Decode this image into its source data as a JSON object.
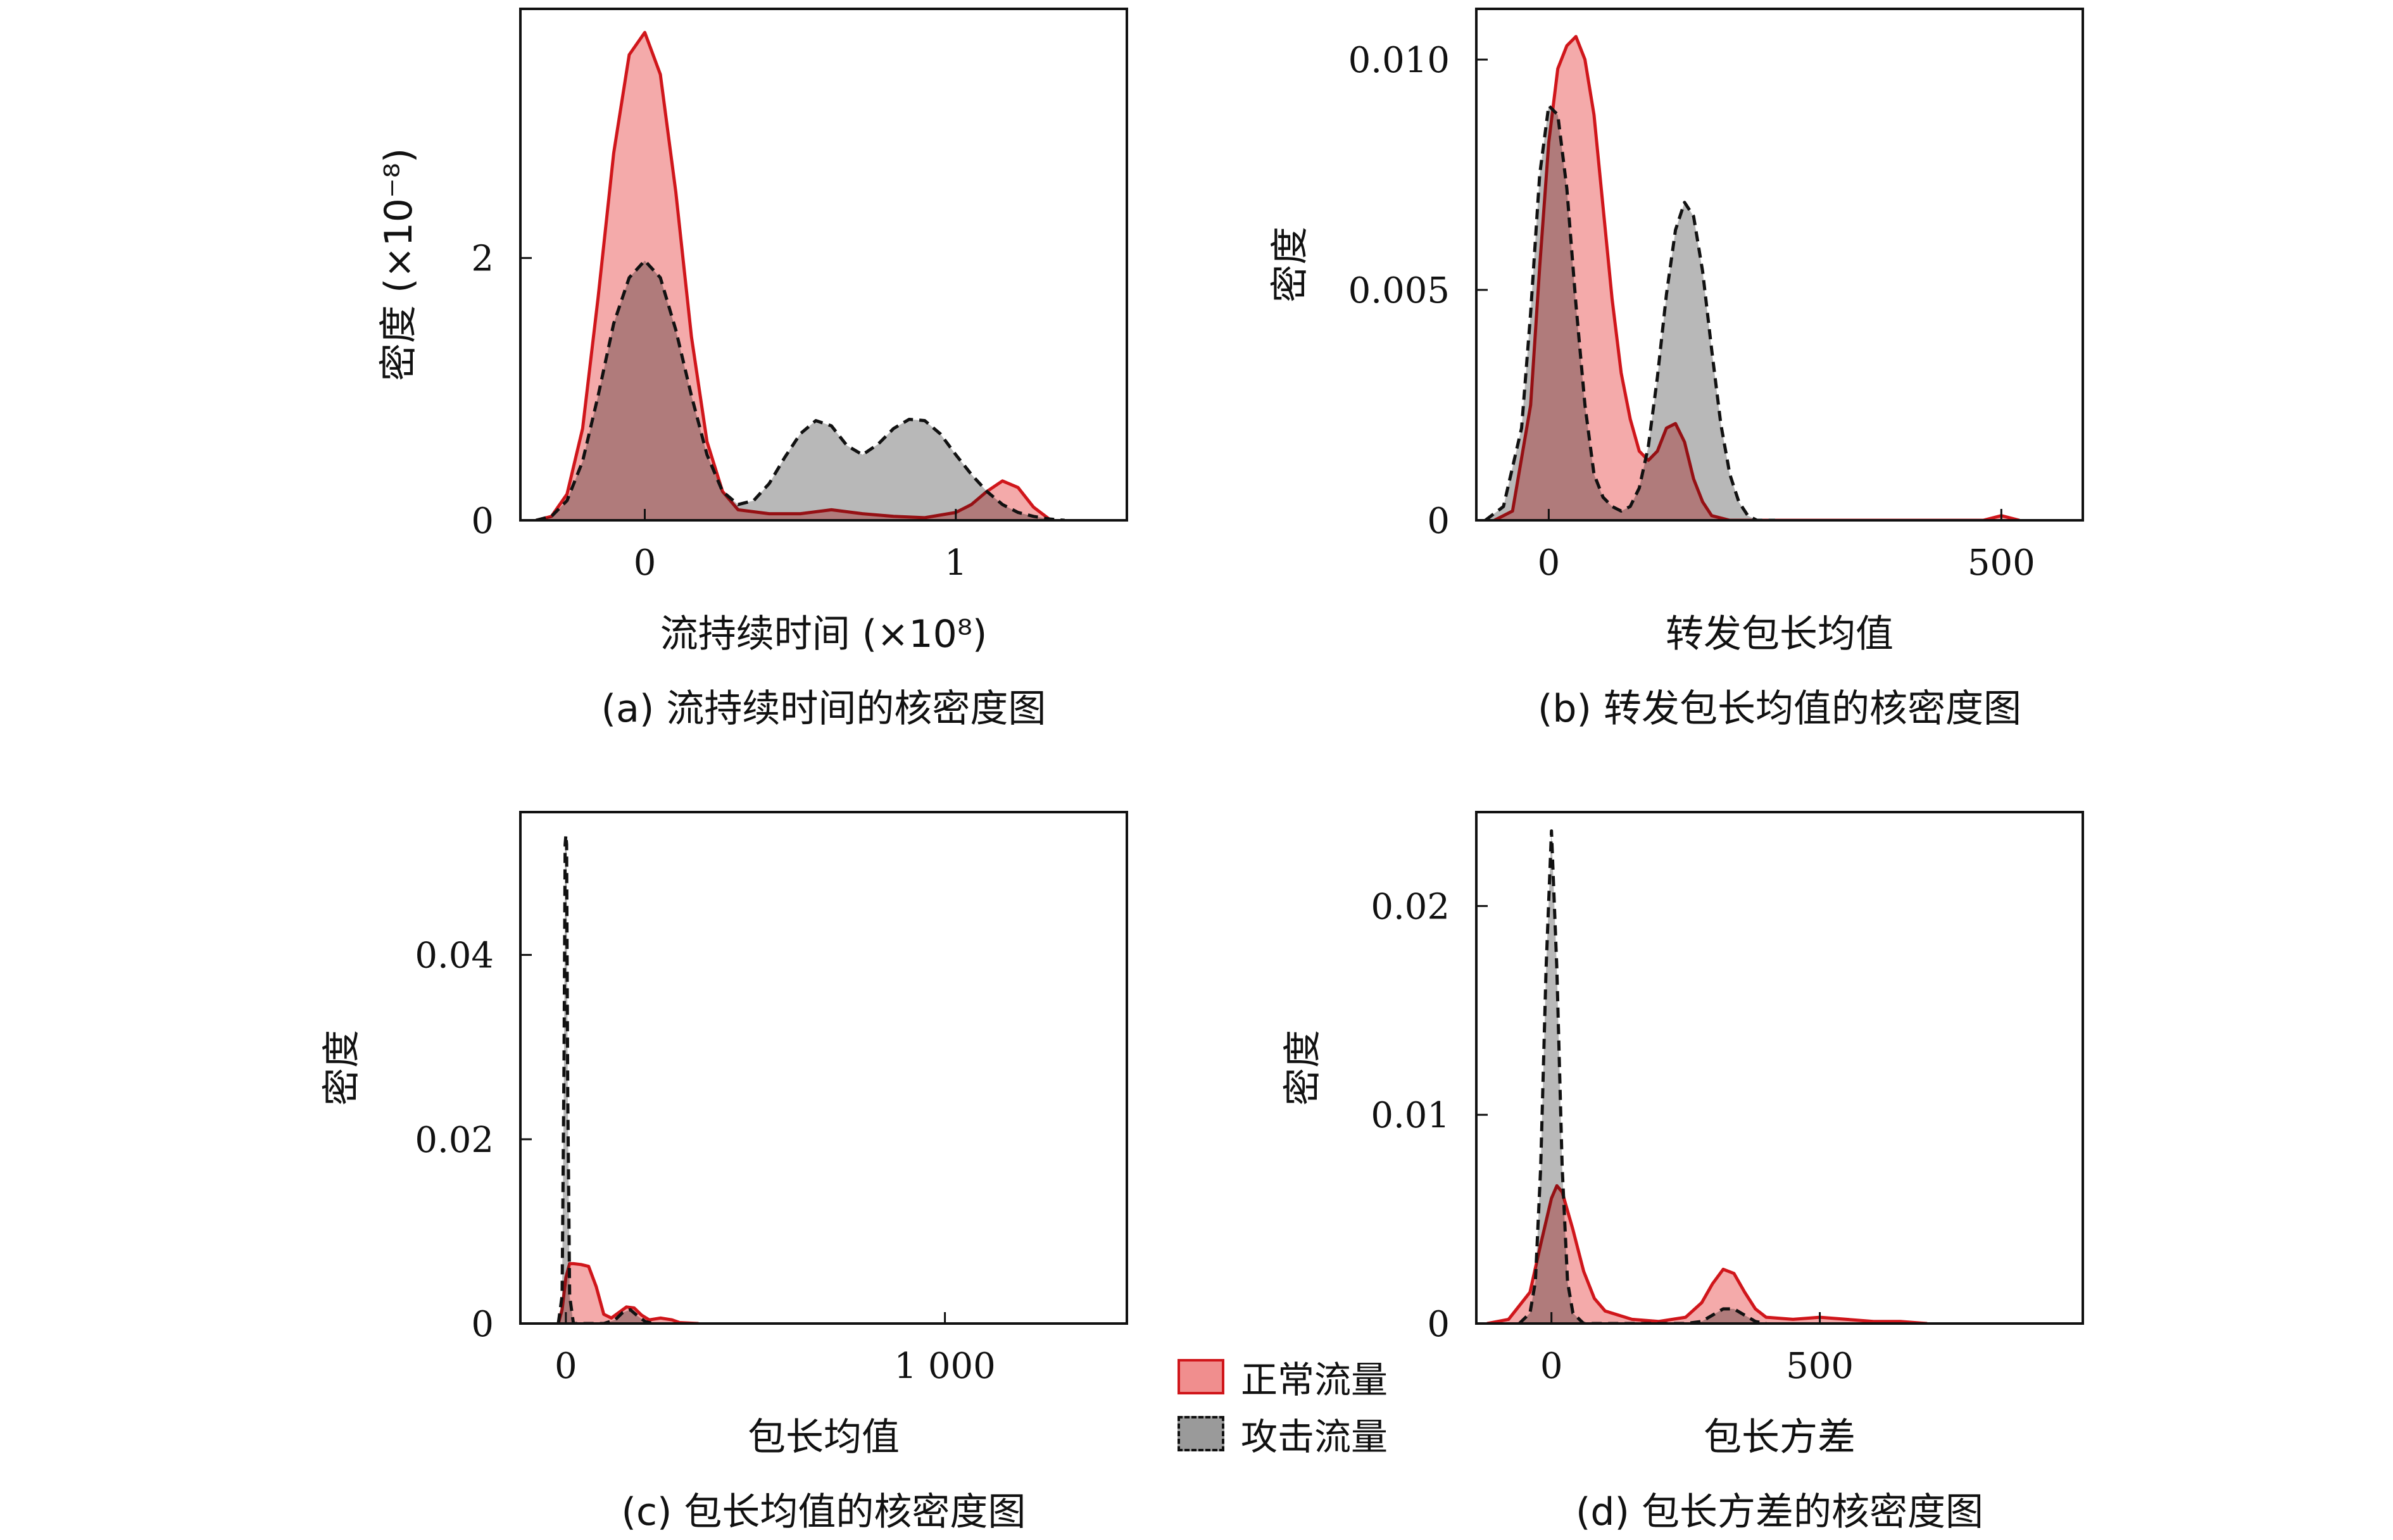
{
  "figure": {
    "colors": {
      "normal": "#d0161b",
      "normal_fill": "#f08e8e",
      "attack": "#111111",
      "attack_fill": "#9a9a9a"
    }
  },
  "legend": {
    "items": [
      {
        "label": "正常流量",
        "series": "normal"
      },
      {
        "label": "攻击流量",
        "series": "attack"
      }
    ]
  },
  "chart_data": [
    {
      "id": "a",
      "type": "area",
      "caption": "(a) 流持续时间的核密度图",
      "xlabel": "流持续时间 (×10⁸)",
      "ylabel": "密度 (×10⁻⁸)",
      "xlim": [
        -0.4,
        1.55
      ],
      "ylim": [
        0,
        3.9
      ],
      "xticks": [
        0,
        1
      ],
      "xtick_labels": [
        "0",
        "1"
      ],
      "yticks": [
        0,
        2
      ],
      "ytick_labels": [
        "0",
        "2"
      ],
      "series": [
        {
          "name": "正常流量",
          "key": "normal",
          "x": [
            -0.35,
            -0.3,
            -0.25,
            -0.2,
            -0.15,
            -0.1,
            -0.05,
            0,
            0.05,
            0.1,
            0.15,
            0.2,
            0.25,
            0.3,
            0.4,
            0.5,
            0.6,
            0.7,
            0.8,
            0.9,
            1.0,
            1.05,
            1.1,
            1.15,
            1.2,
            1.25,
            1.3
          ],
          "y": [
            0.0,
            0.03,
            0.2,
            0.7,
            1.7,
            2.8,
            3.55,
            3.72,
            3.4,
            2.5,
            1.4,
            0.6,
            0.22,
            0.08,
            0.05,
            0.05,
            0.08,
            0.05,
            0.03,
            0.02,
            0.06,
            0.12,
            0.22,
            0.3,
            0.25,
            0.1,
            0.01
          ]
        },
        {
          "name": "攻击流量",
          "key": "attack",
          "x": [
            -0.35,
            -0.3,
            -0.25,
            -0.2,
            -0.15,
            -0.1,
            -0.05,
            0,
            0.05,
            0.1,
            0.15,
            0.2,
            0.25,
            0.3,
            0.35,
            0.4,
            0.45,
            0.5,
            0.55,
            0.6,
            0.65,
            0.7,
            0.75,
            0.8,
            0.85,
            0.9,
            0.95,
            1.0,
            1.05,
            1.1,
            1.15,
            1.2,
            1.25,
            1.3,
            1.35
          ],
          "y": [
            0.0,
            0.03,
            0.15,
            0.45,
            0.95,
            1.5,
            1.85,
            1.98,
            1.85,
            1.45,
            0.95,
            0.5,
            0.22,
            0.12,
            0.15,
            0.28,
            0.48,
            0.66,
            0.76,
            0.72,
            0.57,
            0.5,
            0.58,
            0.7,
            0.77,
            0.76,
            0.66,
            0.5,
            0.35,
            0.22,
            0.12,
            0.06,
            0.03,
            0.01,
            0.0
          ]
        }
      ]
    },
    {
      "id": "b",
      "type": "area",
      "caption": "(b) 转发包长均值的核密度图",
      "xlabel": "转发包长均值",
      "ylabel": "密度",
      "xlim": [
        -80,
        590
      ],
      "ylim": [
        0,
        0.0111
      ],
      "xticks": [
        0,
        500
      ],
      "xtick_labels": [
        "0",
        "500"
      ],
      "yticks": [
        0,
        0.005,
        0.01
      ],
      "ytick_labels": [
        "0",
        "0.005",
        "0.010"
      ],
      "series": [
        {
          "name": "正常流量",
          "key": "normal",
          "x": [
            -60,
            -40,
            -20,
            -10,
            0,
            10,
            20,
            30,
            40,
            50,
            60,
            70,
            80,
            90,
            100,
            110,
            120,
            130,
            140,
            150,
            160,
            170,
            180,
            200,
            250,
            300,
            400,
            480,
            500,
            520
          ],
          "y": [
            0.0,
            0.0002,
            0.0025,
            0.0055,
            0.0082,
            0.0098,
            0.0103,
            0.0105,
            0.01,
            0.0088,
            0.0068,
            0.0048,
            0.0032,
            0.0022,
            0.0015,
            0.0013,
            0.0015,
            0.002,
            0.0021,
            0.0017,
            0.0009,
            0.0004,
            0.0001,
            0.0,
            0.0,
            0.0,
            0.0,
            0.0,
            0.0001,
            0.0
          ]
        },
        {
          "name": "攻击流量",
          "key": "attack",
          "x": [
            -70,
            -50,
            -30,
            -20,
            -10,
            0,
            10,
            20,
            30,
            40,
            50,
            60,
            70,
            80,
            90,
            100,
            110,
            120,
            130,
            140,
            150,
            160,
            170,
            180,
            190,
            200,
            210,
            220,
            230,
            240,
            250
          ],
          "y": [
            0.0,
            0.0003,
            0.002,
            0.0045,
            0.0075,
            0.009,
            0.0088,
            0.0072,
            0.0047,
            0.0025,
            0.001,
            0.0005,
            0.0003,
            0.0002,
            0.0003,
            0.0007,
            0.0016,
            0.0031,
            0.0049,
            0.0063,
            0.0069,
            0.0066,
            0.0054,
            0.0037,
            0.0021,
            0.001,
            0.0004,
            0.0001,
            0.0,
            0.0,
            0.0
          ]
        }
      ]
    },
    {
      "id": "c",
      "type": "area",
      "caption": "(c) 包长均值的核密度图",
      "xlabel": "包长均值",
      "ylabel": "密度",
      "xlim": [
        -120,
        1480
      ],
      "ylim": [
        0,
        0.0555
      ],
      "xticks": [
        0,
        1000
      ],
      "xtick_labels": [
        "0",
        "1 000"
      ],
      "yticks": [
        0,
        0.02,
        0.04
      ],
      "ytick_labels": [
        "0",
        "0.02",
        "0.04"
      ],
      "series": [
        {
          "name": "正常流量",
          "key": "normal",
          "x": [
            -20,
            -10,
            0,
            10,
            20,
            40,
            60,
            80,
            100,
            120,
            140,
            160,
            180,
            200,
            220,
            250,
            280,
            300,
            350
          ],
          "y": [
            0.0,
            0.0015,
            0.005,
            0.0065,
            0.0065,
            0.0064,
            0.0062,
            0.004,
            0.001,
            0.0006,
            0.0012,
            0.0018,
            0.0017,
            0.0009,
            0.0004,
            0.0006,
            0.0004,
            0.0001,
            0.0
          ]
        },
        {
          "name": "攻击流量",
          "key": "attack",
          "x": [
            -20,
            -10,
            -5,
            -2,
            0,
            2,
            5,
            10,
            20,
            100,
            130,
            150,
            170,
            190,
            210,
            230
          ],
          "y": [
            0.0,
            0.003,
            0.028,
            0.052,
            0.053,
            0.052,
            0.025,
            0.003,
            0.0,
            0.0,
            0.0004,
            0.0012,
            0.0015,
            0.0008,
            0.0002,
            0.0
          ]
        }
      ]
    },
    {
      "id": "d",
      "type": "area",
      "caption": "(d) 包长方差的核密度图",
      "xlabel": "包长方差",
      "ylabel": "密度",
      "xlim": [
        -140,
        990
      ],
      "ylim": [
        0,
        0.0245
      ],
      "xticks": [
        0,
        500
      ],
      "xtick_labels": [
        "0",
        "500"
      ],
      "yticks": [
        0,
        0.01,
        0.02
      ],
      "ytick_labels": [
        "0",
        "0.01",
        "0.02"
      ],
      "series": [
        {
          "name": "正常流量",
          "key": "normal",
          "x": [
            -120,
            -80,
            -40,
            -20,
            0,
            10,
            20,
            40,
            60,
            80,
            100,
            150,
            200,
            250,
            280,
            300,
            320,
            340,
            360,
            380,
            400,
            450,
            500,
            550,
            600,
            650,
            700
          ],
          "y": [
            0.0,
            0.0002,
            0.0015,
            0.0038,
            0.006,
            0.0066,
            0.0063,
            0.0045,
            0.0025,
            0.0012,
            0.0006,
            0.0002,
            0.0001,
            0.0003,
            0.001,
            0.0019,
            0.0026,
            0.0024,
            0.0015,
            0.0007,
            0.0003,
            0.0002,
            0.0003,
            0.0002,
            0.0001,
            0.0001,
            0.0
          ]
        },
        {
          "name": "攻击流量",
          "key": "attack",
          "x": [
            -60,
            -40,
            -30,
            -20,
            -10,
            0,
            10,
            20,
            30,
            40,
            60,
            250,
            280,
            300,
            320,
            340,
            360,
            380,
            400
          ],
          "y": [
            0.0,
            0.0005,
            0.002,
            0.0075,
            0.017,
            0.0236,
            0.017,
            0.0075,
            0.002,
            0.0005,
            0.0,
            0.0,
            0.0001,
            0.0004,
            0.0007,
            0.0007,
            0.0004,
            0.0001,
            0.0
          ]
        }
      ]
    }
  ]
}
